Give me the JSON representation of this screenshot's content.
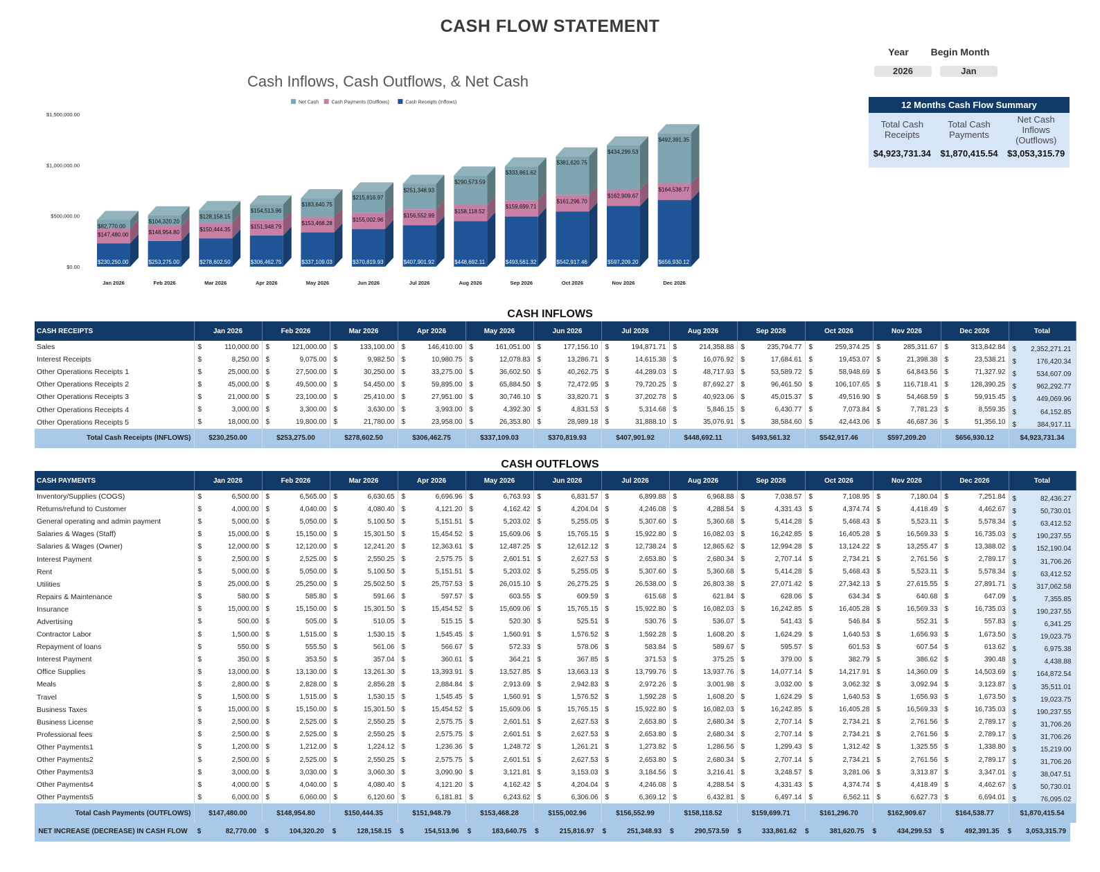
{
  "title": "CASH FLOW STATEMENT",
  "controls": {
    "year_label": "Year",
    "year_value": "2026",
    "begin_month_label": "Begin Month",
    "begin_month_value": "Jan"
  },
  "summary": {
    "header": "12 Months Cash Flow Summary",
    "receipts_label": "Total Cash Receipts",
    "payments_label": "Total Cash Payments",
    "net_label": "Net Cash Inflows (Outflows)",
    "receipts_value": "$4,923,731.34",
    "payments_value": "$1,870,415.54",
    "net_value": "$3,053,315.79"
  },
  "chart_data": {
    "type": "bar",
    "stacked": true,
    "three_d": true,
    "title": "Cash Inflows, Cash Outflows, & Net Cash",
    "legend_position": "top",
    "categories": [
      "Jan 2026",
      "Feb 2026",
      "Mar 2026",
      "Apr 2026",
      "May 2026",
      "Jun 2026",
      "Jul 2026",
      "Aug 2026",
      "Sep 2026",
      "Oct 2026",
      "Nov 2026",
      "Dec 2026"
    ],
    "y_ticks": [
      "$1,500,000.00",
      "$1,000,000.00",
      "$500,000.00",
      "$0.00"
    ],
    "ylim": [
      0,
      1500000
    ],
    "series": [
      {
        "name": "Net Cash",
        "color": "#7fa6b0",
        "values": [
          82770.0,
          104320.2,
          128158.15,
          154513.96,
          183640.75,
          215816.97,
          251348.93,
          290573.59,
          333861.62,
          381620.75,
          434299.53,
          492391.35
        ],
        "labels": [
          "$82,770.00",
          "$104,320.20",
          "$128,158.15",
          "$154,513.96",
          "$183,640.75",
          "$215,816.97",
          "$251,348.93",
          "$290,573.59",
          "$333,861.62",
          "$381,620.75",
          "$434,299.53",
          "$492,391.35"
        ]
      },
      {
        "name": "Cash Payments (Outflows)",
        "color": "#c77fa5",
        "values": [
          147480.0,
          148954.8,
          150444.35,
          151948.79,
          153468.28,
          155002.96,
          156552.99,
          158118.52,
          159699.71,
          161296.7,
          162909.67,
          164538.77
        ],
        "labels": [
          "$147,480.00",
          "$148,954.80",
          "$150,444.35",
          "$151,948.79",
          "$153,468.28",
          "$155,002.96",
          "$156,552.99",
          "$158,118.52",
          "$159,699.71",
          "$161,296.70",
          "$162,909.67",
          "$164,538.77"
        ]
      },
      {
        "name": "Cash Receipts (Inflows)",
        "color": "#1f5597",
        "values": [
          230250.0,
          253275.0,
          278602.5,
          306462.75,
          337109.03,
          370819.93,
          407901.92,
          448692.11,
          493561.32,
          542917.46,
          597209.2,
          656930.12
        ],
        "labels": [
          "$230,250.00",
          "$253,275.00",
          "$278,602.50",
          "$306,462.75",
          "$337,109.03",
          "$370,819.93",
          "$407,901.92",
          "$448,692.11",
          "$493,561.32",
          "$542,917.46",
          "$597,209.20",
          "$656,930.12"
        ]
      }
    ]
  },
  "months": [
    "Jan 2026",
    "Feb 2026",
    "Mar 2026",
    "Apr 2026",
    "May 2026",
    "Jun 2026",
    "Jul 2026",
    "Aug 2026",
    "Sep 2026",
    "Oct 2026",
    "Nov 2026",
    "Dec 2026"
  ],
  "total_header": "Total",
  "inflows": {
    "section_title": "CASH INFLOWS",
    "header": "CASH RECEIPTS",
    "rows": [
      {
        "label": "Sales",
        "values": [
          "110,000.00",
          "121,000.00",
          "133,100.00",
          "146,410.00",
          "161,051.00",
          "177,156.10",
          "194,871.71",
          "214,358.88",
          "235,794.77",
          "259,374.25",
          "285,311.67",
          "313,842.84"
        ],
        "total": "2,352,271.21"
      },
      {
        "label": "Interest Receipts",
        "values": [
          "8,250.00",
          "9,075.00",
          "9,982.50",
          "10,980.75",
          "12,078.83",
          "13,286.71",
          "14,615.38",
          "16,076.92",
          "17,684.61",
          "19,453.07",
          "21,398.38",
          "23,538.21"
        ],
        "total": "176,420.34"
      },
      {
        "label": "Other Operations Receipts 1",
        "values": [
          "25,000.00",
          "27,500.00",
          "30,250.00",
          "33,275.00",
          "36,602.50",
          "40,262.75",
          "44,289.03",
          "48,717.93",
          "53,589.72",
          "58,948.69",
          "64,843.56",
          "71,327.92"
        ],
        "total": "534,607.09"
      },
      {
        "label": "Other Operations Receipts 2",
        "values": [
          "45,000.00",
          "49,500.00",
          "54,450.00",
          "59,895.00",
          "65,884.50",
          "72,472.95",
          "79,720.25",
          "87,692.27",
          "96,461.50",
          "106,107.65",
          "116,718.41",
          "128,390.25"
        ],
        "total": "962,292.77"
      },
      {
        "label": "Other Operations Receipts 3",
        "values": [
          "21,000.00",
          "23,100.00",
          "25,410.00",
          "27,951.00",
          "30,746.10",
          "33,820.71",
          "37,202.78",
          "40,923.06",
          "45,015.37",
          "49,516.90",
          "54,468.59",
          "59,915.45"
        ],
        "total": "449,069.96"
      },
      {
        "label": "Other Operations Receipts 4",
        "values": [
          "3,000.00",
          "3,300.00",
          "3,630.00",
          "3,993.00",
          "4,392.30",
          "4,831.53",
          "5,314.68",
          "5,846.15",
          "6,430.77",
          "7,073.84",
          "7,781.23",
          "8,559.35"
        ],
        "total": "64,152.85"
      },
      {
        "label": "Other Operations Receipts 5",
        "values": [
          "18,000.00",
          "19,800.00",
          "21,780.00",
          "23,958.00",
          "26,353.80",
          "28,989.18",
          "31,888.10",
          "35,076.91",
          "38,584.60",
          "42,443.06",
          "46,687.36",
          "51,356.10"
        ],
        "total": "384,917.11"
      }
    ],
    "total_label": "Total Cash Receipts (INFLOWS)",
    "totals": [
      "$230,250.00",
      "$253,275.00",
      "$278,602.50",
      "$306,462.75",
      "$337,109.03",
      "$370,819.93",
      "$407,901.92",
      "$448,692.11",
      "$493,561.32",
      "$542,917.46",
      "$597,209.20",
      "$656,930.12",
      "$4,923,731.34"
    ]
  },
  "outflows": {
    "section_title": "CASH OUTFLOWS",
    "header": "CASH PAYMENTS",
    "rows": [
      {
        "label": "Inventory/Supplies (COGS)",
        "values": [
          "6,500.00",
          "6,565.00",
          "6,630.65",
          "6,696.96",
          "6,763.93",
          "6,831.57",
          "6,899.88",
          "6,968.88",
          "7,038.57",
          "7,108.95",
          "7,180.04",
          "7,251.84"
        ],
        "total": "82,436.27"
      },
      {
        "label": "Returns/refund to Customer",
        "values": [
          "4,000.00",
          "4,040.00",
          "4,080.40",
          "4,121.20",
          "4,162.42",
          "4,204.04",
          "4,246.08",
          "4,288.54",
          "4,331.43",
          "4,374.74",
          "4,418.49",
          "4,462.67"
        ],
        "total": "50,730.01"
      },
      {
        "label": "General operating and admin payment",
        "values": [
          "5,000.00",
          "5,050.00",
          "5,100.50",
          "5,151.51",
          "5,203.02",
          "5,255.05",
          "5,307.60",
          "5,360.68",
          "5,414.28",
          "5,468.43",
          "5,523.11",
          "5,578.34"
        ],
        "total": "63,412.52"
      },
      {
        "label": "Salaries & Wages (Staff)",
        "values": [
          "15,000.00",
          "15,150.00",
          "15,301.50",
          "15,454.52",
          "15,609.06",
          "15,765.15",
          "15,922.80",
          "16,082.03",
          "16,242.85",
          "16,405.28",
          "16,569.33",
          "16,735.03"
        ],
        "total": "190,237.55"
      },
      {
        "label": "Salaries & Wages (Owner)",
        "values": [
          "12,000.00",
          "12,120.00",
          "12,241.20",
          "12,363.61",
          "12,487.25",
          "12,612.12",
          "12,738.24",
          "12,865.62",
          "12,994.28",
          "13,124.22",
          "13,255.47",
          "13,388.02"
        ],
        "total": "152,190.04"
      },
      {
        "label": "Interest Payment",
        "values": [
          "2,500.00",
          "2,525.00",
          "2,550.25",
          "2,575.75",
          "2,601.51",
          "2,627.53",
          "2,653.80",
          "2,680.34",
          "2,707.14",
          "2,734.21",
          "2,761.56",
          "2,789.17"
        ],
        "total": "31,706.26"
      },
      {
        "label": "Rent",
        "values": [
          "5,000.00",
          "5,050.00",
          "5,100.50",
          "5,151.51",
          "5,203.02",
          "5,255.05",
          "5,307.60",
          "5,360.68",
          "5,414.28",
          "5,468.43",
          "5,523.11",
          "5,578.34"
        ],
        "total": "63,412.52"
      },
      {
        "label": "Utilities",
        "values": [
          "25,000.00",
          "25,250.00",
          "25,502.50",
          "25,757.53",
          "26,015.10",
          "26,275.25",
          "26,538.00",
          "26,803.38",
          "27,071.42",
          "27,342.13",
          "27,615.55",
          "27,891.71"
        ],
        "total": "317,062.58"
      },
      {
        "label": "Repairs & Maintenance",
        "values": [
          "580.00",
          "585.80",
          "591.66",
          "597.57",
          "603.55",
          "609.59",
          "615.68",
          "621.84",
          "628.06",
          "634.34",
          "640.68",
          "647.09"
        ],
        "total": "7,355.85"
      },
      {
        "label": "Insurance",
        "values": [
          "15,000.00",
          "15,150.00",
          "15,301.50",
          "15,454.52",
          "15,609.06",
          "15,765.15",
          "15,922.80",
          "16,082.03",
          "16,242.85",
          "16,405.28",
          "16,569.33",
          "16,735.03"
        ],
        "total": "190,237.55"
      },
      {
        "label": "Advertising",
        "values": [
          "500.00",
          "505.00",
          "510.05",
          "515.15",
          "520.30",
          "525.51",
          "530.76",
          "536.07",
          "541.43",
          "546.84",
          "552.31",
          "557.83"
        ],
        "total": "6,341.25"
      },
      {
        "label": "Contractor Labor",
        "values": [
          "1,500.00",
          "1,515.00",
          "1,530.15",
          "1,545.45",
          "1,560.91",
          "1,576.52",
          "1,592.28",
          "1,608.20",
          "1,624.29",
          "1,640.53",
          "1,656.93",
          "1,673.50"
        ],
        "total": "19,023.75"
      },
      {
        "label": "Repayment of loans",
        "values": [
          "550.00",
          "555.50",
          "561.06",
          "566.67",
          "572.33",
          "578.06",
          "583.84",
          "589.67",
          "595.57",
          "601.53",
          "607.54",
          "613.62"
        ],
        "total": "6,975.38"
      },
      {
        "label": "Interest Payment",
        "values": [
          "350.00",
          "353.50",
          "357.04",
          "360.61",
          "364.21",
          "367.85",
          "371.53",
          "375.25",
          "379.00",
          "382.79",
          "386.62",
          "390.48"
        ],
        "total": "4,438.88"
      },
      {
        "label": "Office Supplies",
        "values": [
          "13,000.00",
          "13,130.00",
          "13,261.30",
          "13,393.91",
          "13,527.85",
          "13,663.13",
          "13,799.76",
          "13,937.76",
          "14,077.14",
          "14,217.91",
          "14,360.09",
          "14,503.69"
        ],
        "total": "164,872.54"
      },
      {
        "label": "Meals",
        "values": [
          "2,800.00",
          "2,828.00",
          "2,856.28",
          "2,884.84",
          "2,913.69",
          "2,942.83",
          "2,972.26",
          "3,001.98",
          "3,032.00",
          "3,062.32",
          "3,092.94",
          "3,123.87"
        ],
        "total": "35,511.01"
      },
      {
        "label": "Travel",
        "values": [
          "1,500.00",
          "1,515.00",
          "1,530.15",
          "1,545.45",
          "1,560.91",
          "1,576.52",
          "1,592.28",
          "1,608.20",
          "1,624.29",
          "1,640.53",
          "1,656.93",
          "1,673.50"
        ],
        "total": "19,023.75"
      },
      {
        "label": "Business Taxes",
        "values": [
          "15,000.00",
          "15,150.00",
          "15,301.50",
          "15,454.52",
          "15,609.06",
          "15,765.15",
          "15,922.80",
          "16,082.03",
          "16,242.85",
          "16,405.28",
          "16,569.33",
          "16,735.03"
        ],
        "total": "190,237.55"
      },
      {
        "label": "Business License",
        "values": [
          "2,500.00",
          "2,525.00",
          "2,550.25",
          "2,575.75",
          "2,601.51",
          "2,627.53",
          "2,653.80",
          "2,680.34",
          "2,707.14",
          "2,734.21",
          "2,761.56",
          "2,789.17"
        ],
        "total": "31,706.26"
      },
      {
        "label": "Professional fees",
        "values": [
          "2,500.00",
          "2,525.00",
          "2,550.25",
          "2,575.75",
          "2,601.51",
          "2,627.53",
          "2,653.80",
          "2,680.34",
          "2,707.14",
          "2,734.21",
          "2,761.56",
          "2,789.17"
        ],
        "total": "31,706.26"
      },
      {
        "label": "Other Payments1",
        "values": [
          "1,200.00",
          "1,212.00",
          "1,224.12",
          "1,236.36",
          "1,248.72",
          "1,261.21",
          "1,273.82",
          "1,286.56",
          "1,299.43",
          "1,312.42",
          "1,325.55",
          "1,338.80"
        ],
        "total": "15,219.00"
      },
      {
        "label": "Other Payments2",
        "values": [
          "2,500.00",
          "2,525.00",
          "2,550.25",
          "2,575.75",
          "2,601.51",
          "2,627.53",
          "2,653.80",
          "2,680.34",
          "2,707.14",
          "2,734.21",
          "2,761.56",
          "2,789.17"
        ],
        "total": "31,706.26"
      },
      {
        "label": "Other Payments3",
        "values": [
          "3,000.00",
          "3,030.00",
          "3,060.30",
          "3,090.90",
          "3,121.81",
          "3,153.03",
          "3,184.56",
          "3,216.41",
          "3,248.57",
          "3,281.06",
          "3,313.87",
          "3,347.01"
        ],
        "total": "38,047.51"
      },
      {
        "label": "Other Payments4",
        "values": [
          "4,000.00",
          "4,040.00",
          "4,080.40",
          "4,121.20",
          "4,162.42",
          "4,204.04",
          "4,246.08",
          "4,288.54",
          "4,331.43",
          "4,374.74",
          "4,418.49",
          "4,462.67"
        ],
        "total": "50,730.01"
      },
      {
        "label": "Other Payments5",
        "values": [
          "6,000.00",
          "6,060.00",
          "6,120.60",
          "6,181.81",
          "6,243.62",
          "6,306.06",
          "6,369.12",
          "6,432.81",
          "6,497.14",
          "6,562.11",
          "6,627.73",
          "6,694.01"
        ],
        "total": "76,095.02"
      }
    ],
    "total_label": "Total Cash Payments (OUTFLOWS)",
    "totals": [
      "$147,480.00",
      "$148,954.80",
      "$150,444.35",
      "$151,948.79",
      "$153,468.28",
      "$155,002.96",
      "$156,552.99",
      "$158,118.52",
      "$159,699.71",
      "$161,296.70",
      "$162,909.67",
      "$164,538.77",
      "$1,870,415.54"
    ]
  },
  "net": {
    "label": "NET INCREASE (DECREASE) IN CASH FLOW",
    "values": [
      "82,770.00",
      "104,320.20",
      "128,158.15",
      "154,513.96",
      "183,640.75",
      "215,816.97",
      "251,348.93",
      "290,573.59",
      "333,861.62",
      "381,620.75",
      "434,299.53",
      "492,391.35",
      "3,053,315.79"
    ]
  }
}
